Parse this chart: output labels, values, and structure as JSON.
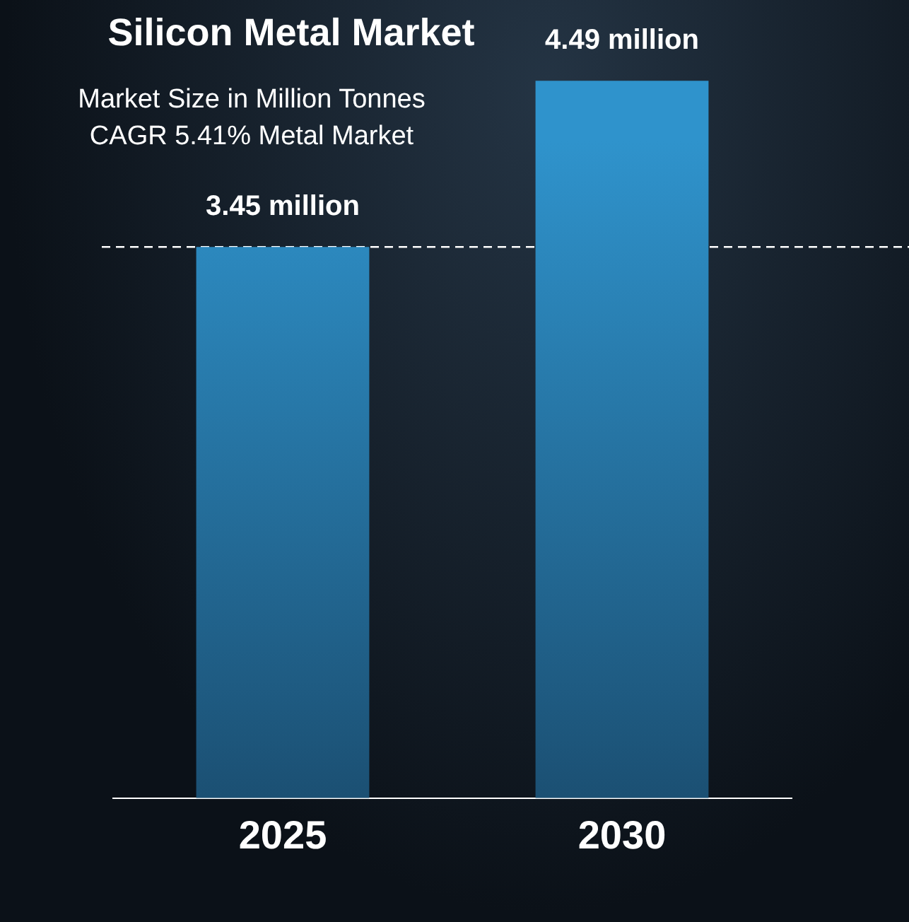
{
  "chart_data": {
    "type": "bar",
    "title": "Silicon Metal Market",
    "subtitle": "Market Size in Million Tonnes\nCAGR 5.41% Metal Market",
    "categories": [
      "2025",
      "2030"
    ],
    "values": [
      3.45,
      4.49
    ],
    "color": "#2f93cc",
    "value_labels": [
      "3.45 million",
      "4.49 million"
    ],
    "ref_lines": [
      {
        "axis": "y",
        "value": 3.45,
        "color": "#ffffff",
        "line_style": "dashed"
      }
    ],
    "grid": false,
    "legend": false
  }
}
